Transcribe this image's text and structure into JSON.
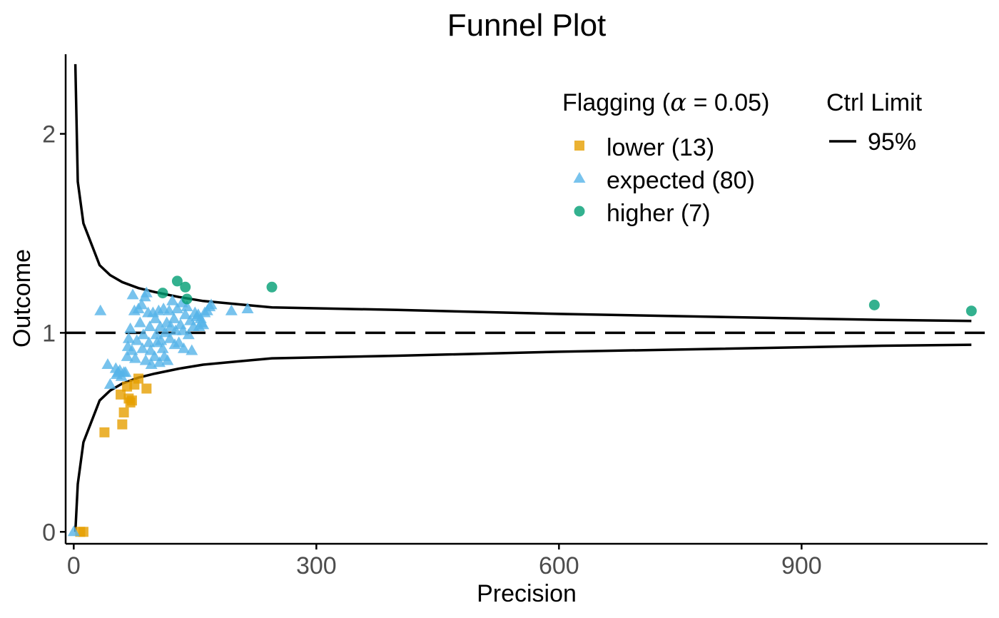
{
  "colors": {
    "lower": "#E69F00",
    "expected": "#56B4E9",
    "higher": "#009E73",
    "line": "#000000",
    "axis": "#000000",
    "tick_text": "#4d4d4d"
  },
  "chart_data": {
    "type": "scatter",
    "title": "Funnel Plot",
    "xlabel": "Precision",
    "ylabel": "Outcome",
    "xlim": [
      -10,
      1130
    ],
    "ylim": [
      -0.06,
      2.4
    ],
    "x_ticks": [
      0,
      300,
      600,
      900
    ],
    "x_tick_labels": [
      "0",
      "300",
      "600",
      "900"
    ],
    "y_ticks": [
      0,
      1,
      2
    ],
    "y_tick_labels": [
      "0",
      "1",
      "2"
    ],
    "target_line": 1,
    "legend": {
      "placement": "top-right",
      "flag_title_prefix": "Flagging (",
      "flag_title_symbol": "α",
      "flag_title_suffix": " = 0.05)",
      "flag_entries": [
        {
          "key": "lower",
          "label": "lower (13)",
          "shape": "square"
        },
        {
          "key": "expected",
          "label": "expected (80)",
          "shape": "triangle"
        },
        {
          "key": "higher",
          "label": "higher (7)",
          "shape": "circle"
        }
      ],
      "limit_title": "Ctrl Limit",
      "limit_entries": [
        {
          "label": "95%"
        }
      ]
    },
    "control_limits": {
      "name": "95%",
      "upper": [
        [
          2,
          2.35
        ],
        [
          5,
          1.76
        ],
        [
          12,
          1.55
        ],
        [
          32,
          1.34
        ],
        [
          45,
          1.29
        ],
        [
          60,
          1.255
        ],
        [
          80,
          1.225
        ],
        [
          100,
          1.205
        ],
        [
          130,
          1.18
        ],
        [
          160,
          1.16
        ],
        [
          200,
          1.145
        ],
        [
          245,
          1.128
        ],
        [
          400,
          1.115
        ],
        [
          600,
          1.095
        ],
        [
          800,
          1.08
        ],
        [
          1000,
          1.065
        ],
        [
          1110,
          1.06
        ]
      ],
      "lower": [
        [
          2,
          0.0
        ],
        [
          5,
          0.24
        ],
        [
          12,
          0.45
        ],
        [
          32,
          0.66
        ],
        [
          45,
          0.71
        ],
        [
          60,
          0.745
        ],
        [
          80,
          0.775
        ],
        [
          100,
          0.795
        ],
        [
          130,
          0.82
        ],
        [
          160,
          0.84
        ],
        [
          200,
          0.855
        ],
        [
          245,
          0.872
        ],
        [
          400,
          0.885
        ],
        [
          600,
          0.905
        ],
        [
          800,
          0.92
        ],
        [
          1000,
          0.935
        ],
        [
          1110,
          0.94
        ]
      ]
    },
    "series": [
      {
        "name": "lower",
        "points": [
          [
            8,
            0.0
          ],
          [
            12,
            0.0
          ],
          [
            38,
            0.5
          ],
          [
            60,
            0.54
          ],
          [
            62,
            0.6
          ],
          [
            58,
            0.69
          ],
          [
            66,
            0.73
          ],
          [
            68,
            0.67
          ],
          [
            70,
            0.65
          ],
          [
            75,
            0.74
          ],
          [
            80,
            0.77
          ],
          [
            90,
            0.72
          ],
          [
            72,
            0.66
          ]
        ]
      },
      {
        "name": "expected",
        "points": [
          [
            0,
            0.0
          ],
          [
            33,
            1.11
          ],
          [
            42,
            0.84
          ],
          [
            45,
            0.74
          ],
          [
            52,
            0.82
          ],
          [
            53,
            0.79
          ],
          [
            55,
            0.8
          ],
          [
            57,
            0.81
          ],
          [
            59,
            0.78
          ],
          [
            62,
            0.8
          ],
          [
            64,
            0.8
          ],
          [
            66,
            0.88
          ],
          [
            67,
            0.93
          ],
          [
            68,
            0.97
          ],
          [
            70,
            1.02
          ],
          [
            72,
            0.91
          ],
          [
            73,
            1.19
          ],
          [
            75,
            1.11
          ],
          [
            76,
            0.87
          ],
          [
            78,
            0.96
          ],
          [
            80,
            1.12
          ],
          [
            82,
            1.05
          ],
          [
            84,
            1.14
          ],
          [
            85,
            0.92
          ],
          [
            86,
            0.99
          ],
          [
            88,
            1.18
          ],
          [
            89,
            0.86
          ],
          [
            90,
            1.2
          ],
          [
            92,
            1.1
          ],
          [
            93,
            0.95
          ],
          [
            94,
            1.03
          ],
          [
            95,
            0.91
          ],
          [
            96,
            0.84
          ],
          [
            98,
            1.1
          ],
          [
            100,
            0.88
          ],
          [
            101,
            1.07
          ],
          [
            102,
            0.99
          ],
          [
            103,
            0.95
          ],
          [
            105,
            1.11
          ],
          [
            106,
            0.85
          ],
          [
            107,
            1.03
          ],
          [
            108,
            0.96
          ],
          [
            110,
            0.92
          ],
          [
            111,
            1.12
          ],
          [
            112,
            0.88
          ],
          [
            113,
            1.0
          ],
          [
            115,
            1.05
          ],
          [
            116,
            0.86
          ],
          [
            118,
            1.11
          ],
          [
            119,
            0.97
          ],
          [
            120,
            1.03
          ],
          [
            122,
            1.16
          ],
          [
            124,
            1.07
          ],
          [
            125,
            0.94
          ],
          [
            126,
            1.01
          ],
          [
            128,
            1.12
          ],
          [
            130,
            0.95
          ],
          [
            132,
            1.04
          ],
          [
            134,
            1.15
          ],
          [
            135,
            1.01
          ],
          [
            136,
            0.92
          ],
          [
            138,
            1.09
          ],
          [
            140,
            1.13
          ],
          [
            142,
            0.99
          ],
          [
            144,
            1.06
          ],
          [
            146,
            0.91
          ],
          [
            148,
            1.03
          ],
          [
            150,
            1.1
          ],
          [
            152,
            1.08
          ],
          [
            154,
            1.09
          ],
          [
            155,
            1.03
          ],
          [
            157,
            1.07
          ],
          [
            158,
            1.05
          ],
          [
            160,
            1.04
          ],
          [
            162,
            1.1
          ],
          [
            165,
            1.11
          ],
          [
            168,
            1.13
          ],
          [
            170,
            1.14
          ],
          [
            195,
            1.11
          ],
          [
            215,
            1.12
          ]
        ]
      },
      {
        "name": "higher",
        "points": [
          [
            110,
            1.2
          ],
          [
            128,
            1.26
          ],
          [
            138,
            1.23
          ],
          [
            140,
            1.17
          ],
          [
            245,
            1.23
          ],
          [
            990,
            1.14
          ],
          [
            1110,
            1.11
          ]
        ]
      }
    ]
  }
}
